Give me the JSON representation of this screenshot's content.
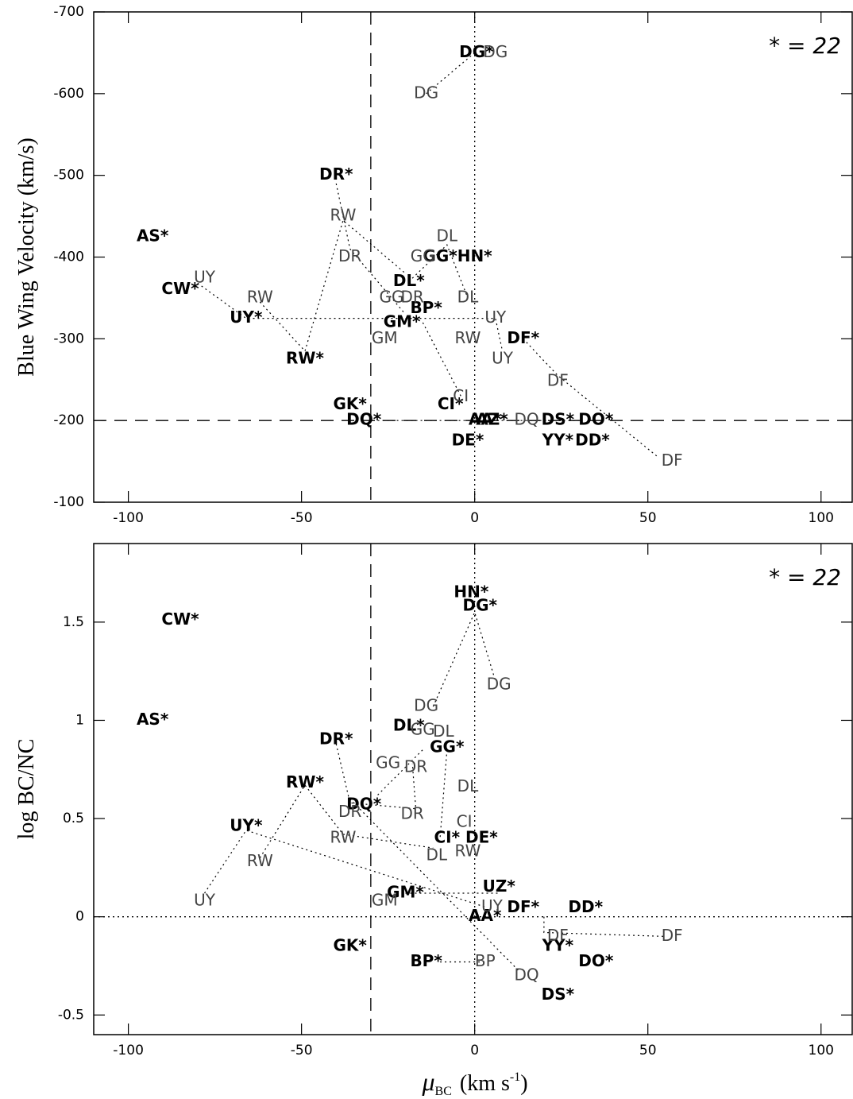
{
  "chart_data": [
    {
      "type": "scatter",
      "ylabel": "Blue Wing Velocity (km/s)",
      "annotation": "* = 22",
      "xlim": [
        -110,
        109
      ],
      "ylim": [
        -700,
        -100
      ],
      "y_inverted": true,
      "xticks": [
        -100,
        -50,
        0,
        50,
        100
      ],
      "yticks": [
        -700,
        -600,
        -500,
        -400,
        -300,
        -200,
        -100
      ],
      "reference_lines": [
        {
          "axis": "x",
          "value": -30,
          "style": "dashed"
        },
        {
          "axis": "y",
          "value": -200,
          "style": "dashed"
        },
        {
          "axis": "x",
          "value": 0,
          "style": "dotted"
        }
      ],
      "series": [
        {
          "color": "#000000",
          "weight": "bold",
          "labels": [
            "DG*",
            "DR*",
            "AS*",
            "GG*",
            "HN*",
            "CW*",
            "DL*",
            "BP*",
            "UY*",
            "GM*",
            "DF*",
            "RW*",
            "GK*",
            "CI*",
            "DQ*",
            "AA*",
            "AZ*",
            "DS*",
            "DO*",
            "DE*",
            "YY*",
            "DD*"
          ],
          "x": [
            0.5,
            -40,
            -93,
            -10,
            0,
            -85,
            -19,
            -14,
            -66,
            -21,
            14,
            -49,
            -36,
            -7,
            -32,
            3,
            5,
            24,
            35,
            -2,
            24,
            34
          ],
          "values": [
            -650,
            -500,
            -425,
            -400,
            -400,
            -360,
            -370,
            -337,
            -325,
            -320,
            -300,
            -275,
            -219,
            -219,
            -200,
            -200,
            -200,
            -200,
            -200,
            -175,
            -175,
            -175
          ]
        },
        {
          "color": "#444444",
          "weight": "normal",
          "labels": [
            "DG",
            "DG",
            "RW",
            "DL",
            "DR",
            "GG",
            "UY",
            "RW",
            "GG",
            "DR",
            "DL",
            "UY",
            "RW",
            "GM",
            "UY",
            "DF",
            "CI",
            "DQ",
            "DF"
          ],
          "x": [
            6,
            -14,
            -38,
            -8,
            -36,
            -15,
            -78,
            -62,
            -24,
            -18,
            -2,
            6,
            -2,
            -26,
            8,
            24,
            -4,
            15,
            57
          ],
          "values": [
            -650,
            -600,
            -450,
            -425,
            -400,
            -400,
            -374,
            -350,
            -350,
            -350,
            -350,
            -325,
            -300,
            -300,
            -275,
            -248,
            -229,
            -200,
            -150
          ]
        }
      ],
      "tracks": [
        {
          "x": [
            0,
            -14
          ],
          "values": [
            -650,
            -600
          ]
        },
        {
          "x": [
            -62,
            -49,
            -38,
            -20
          ],
          "values": [
            -345,
            -285,
            -445,
            -380
          ]
        },
        {
          "x": [
            -40,
            -36,
            -20
          ],
          "values": [
            -490,
            -410,
            -330
          ]
        },
        {
          "x": [
            -80,
            -66,
            6,
            8
          ],
          "values": [
            -368,
            -325,
            -325,
            -285
          ]
        },
        {
          "x": [
            14,
            24,
            53
          ],
          "values": [
            -300,
            -255,
            -155
          ]
        },
        {
          "x": [
            -28,
            30
          ],
          "values": [
            -200,
            -200
          ]
        },
        {
          "x": [
            -4,
            -15
          ],
          "values": [
            -230,
            -320
          ]
        },
        {
          "x": [
            -19,
            -8,
            -2
          ],
          "values": [
            -370,
            -415,
            -350
          ]
        }
      ]
    },
    {
      "type": "scatter",
      "ylabel": "log BC/NC",
      "annotation": "* = 22",
      "xlabel": {
        "symbol": "μ",
        "subscript": "BC",
        "unit": "(km s",
        "superscript": "-1",
        "close": ")"
      },
      "xlim": [
        -110,
        109
      ],
      "ylim": [
        -0.6,
        1.9
      ],
      "y_inverted": false,
      "xticks": [
        -100,
        -50,
        0,
        50,
        100
      ],
      "yticks": [
        1.5,
        1,
        0.5,
        0,
        -0.5
      ],
      "reference_lines": [
        {
          "axis": "x",
          "value": -30,
          "style": "dashed"
        },
        {
          "axis": "x",
          "value": 0,
          "style": "dotted"
        },
        {
          "axis": "y",
          "value": 0,
          "style": "dotted"
        }
      ],
      "series": [
        {
          "color": "#000000",
          "weight": "bold",
          "labels": [
            "HN*",
            "DG*",
            "CW*",
            "AS*",
            "DL*",
            "DR*",
            "GG*",
            "RW*",
            "DQ*",
            "UY*",
            "CI*",
            "DE*",
            "UZ*",
            "GM*",
            "DF*",
            "DD*",
            "AA*",
            "GK*",
            "YY*",
            "DO*",
            "BP*",
            "DS*"
          ],
          "x": [
            -1,
            1.5,
            -85,
            -93,
            -19,
            -40,
            -8,
            -49,
            -32,
            -66,
            -8,
            2,
            7,
            -20,
            14,
            32,
            3,
            -36,
            24,
            35,
            -14,
            24
          ],
          "values": [
            1.65,
            1.58,
            1.51,
            1,
            0.97,
            0.9,
            0.86,
            0.68,
            0.57,
            0.46,
            0.4,
            0.4,
            0.15,
            0.12,
            0.045,
            0.045,
            0,
            -0.15,
            -0.15,
            -0.23,
            -0.23,
            -0.4
          ]
        },
        {
          "color": "#444444",
          "weight": "normal",
          "labels": [
            "DG",
            "DG",
            "GG",
            "DL",
            "GG",
            "DR",
            "DL",
            "DR",
            "DR",
            "CI",
            "RW",
            "RW",
            "DL",
            "RW",
            "GM",
            "UY",
            "UY",
            "DF",
            "DF",
            "BP",
            "DQ"
          ],
          "x": [
            7,
            -14,
            -15,
            -9,
            -25,
            -17,
            -2,
            -36,
            -18,
            -3,
            -38,
            -2,
            -11,
            -62,
            -26,
            -78,
            5,
            24,
            57,
            3,
            15
          ],
          "values": [
            1.18,
            1.07,
            0.95,
            0.94,
            0.78,
            0.76,
            0.66,
            0.53,
            0.52,
            0.48,
            0.4,
            0.33,
            0.31,
            0.28,
            0.08,
            0.08,
            0.05,
            -0.1,
            -0.1,
            -0.23,
            -0.3
          ]
        }
      ],
      "tracks": [
        {
          "x": [
            -12,
            0,
            6
          ],
          "values": [
            1.07,
            1.55,
            1.2
          ]
        },
        {
          "x": [
            -78,
            -66,
            3
          ],
          "values": [
            0.12,
            0.44,
            0.05
          ]
        },
        {
          "x": [
            -62,
            -49,
            -38,
            -12
          ],
          "values": [
            0.3,
            0.67,
            0.42,
            0.35
          ]
        },
        {
          "x": [
            -40,
            -36,
            -17,
            -18
          ],
          "values": [
            0.88,
            0.58,
            0.55,
            0.78
          ]
        },
        {
          "x": [
            20,
            20,
            55
          ],
          "values": [
            0,
            -0.08,
            -0.1
          ]
        },
        {
          "x": [
            -10,
            3
          ],
          "values": [
            -0.23,
            -0.23
          ]
        },
        {
          "x": [
            -28,
            -15
          ],
          "values": [
            0.62,
            0.85
          ]
        },
        {
          "x": [
            -36,
            13
          ],
          "values": [
            0.6,
            -0.28
          ]
        },
        {
          "x": [
            -8,
            -10
          ],
          "values": [
            0.85,
            0.4
          ]
        },
        {
          "x": [
            -20,
            7
          ],
          "values": [
            0.12,
            0.12
          ]
        }
      ]
    }
  ]
}
